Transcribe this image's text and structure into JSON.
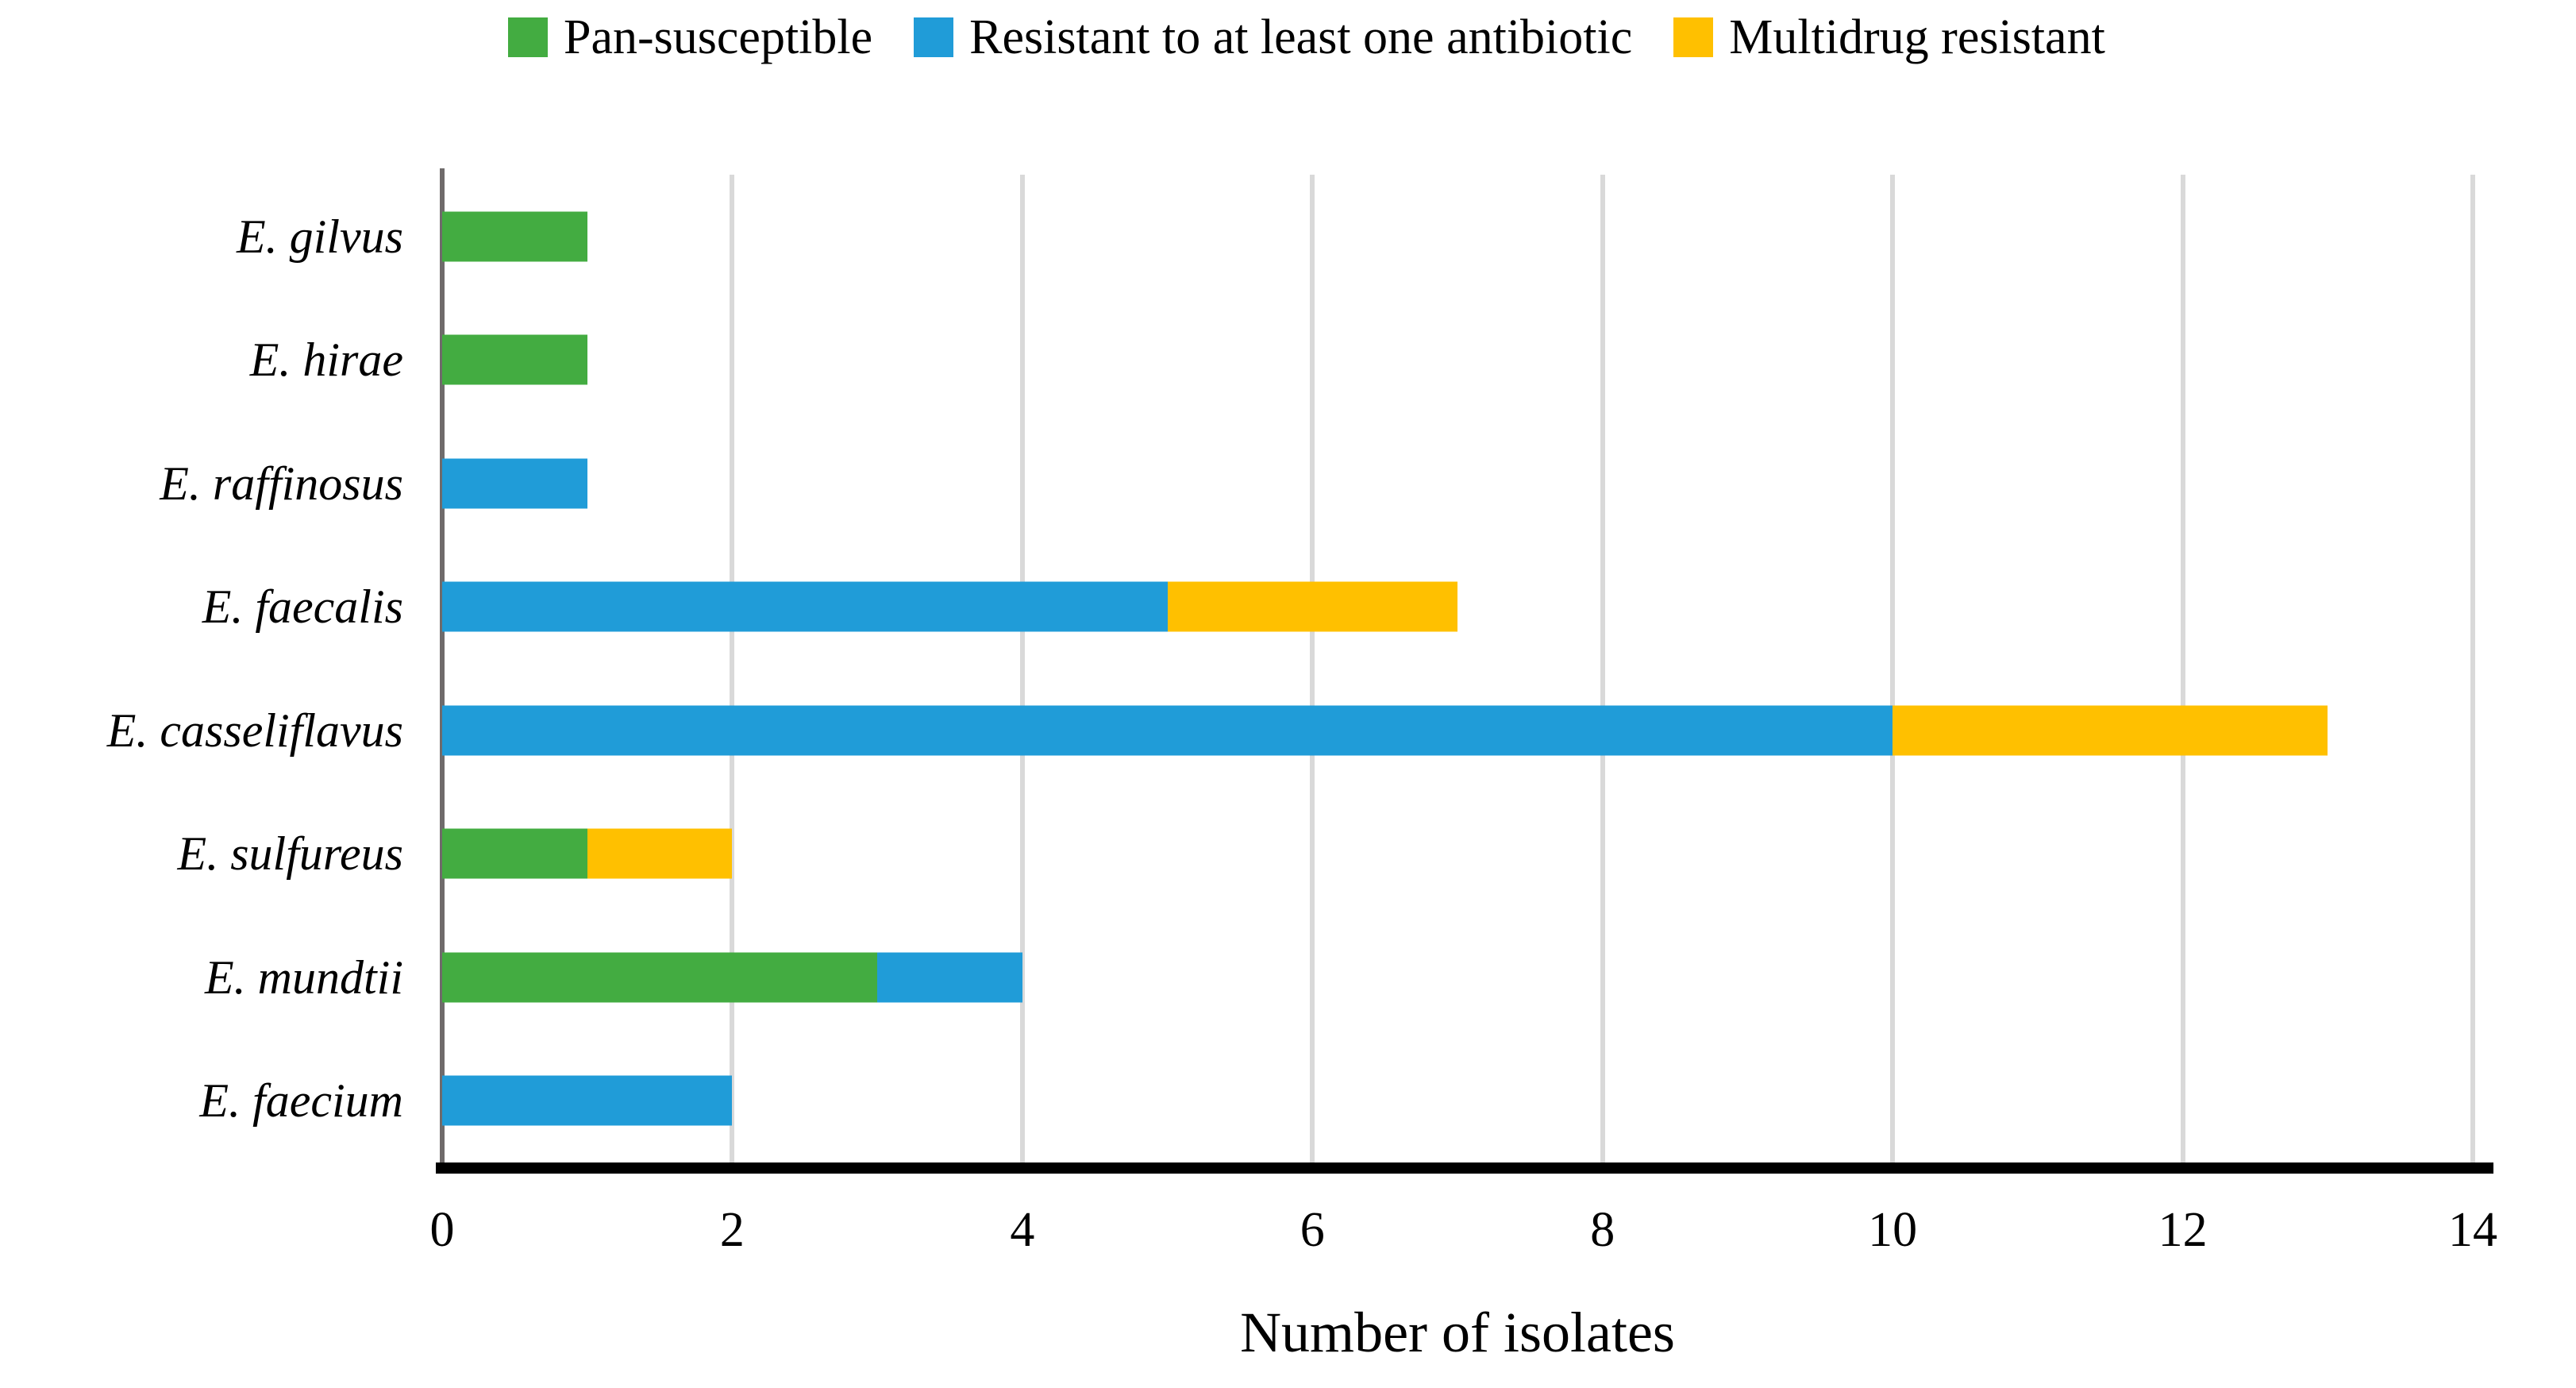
{
  "chart_data": {
    "type": "bar",
    "orientation": "horizontal",
    "stacked": true,
    "title": "",
    "xlabel": "Number of isolates",
    "ylabel": "",
    "xlim": [
      0,
      14
    ],
    "xticks": [
      0,
      2,
      4,
      6,
      8,
      10,
      12,
      14
    ],
    "grid": "vertical-gridlines-every-2",
    "legend_position": "top",
    "categories": [
      "E. gilvus",
      "E. hirae",
      "E. raffinosus",
      "E. faecalis",
      "E. casseliflavus",
      "E. sulfureus",
      "E. mundtii",
      "E. faecium"
    ],
    "series": [
      {
        "name": "Pan-susceptible",
        "color": "#43AC41",
        "values": [
          1,
          1,
          0,
          0,
          0,
          1,
          3,
          0
        ]
      },
      {
        "name": "Resistant to at least one antibiotic",
        "color": "#209CD8",
        "values": [
          0,
          0,
          1,
          5,
          10,
          0,
          1,
          2
        ]
      },
      {
        "name": "Multidrug resistant",
        "color": "#FFC000",
        "values": [
          0,
          0,
          0,
          2,
          3,
          1,
          0,
          0
        ]
      }
    ],
    "totals_by_category": [
      1,
      1,
      1,
      7,
      13,
      2,
      4,
      2
    ],
    "colors": {
      "gridline": "#D9D9D9",
      "category_axis_line": "#6F6B6B",
      "value_axis_line": "#000000",
      "text": "#000000",
      "background": "#FFFFFF"
    }
  }
}
